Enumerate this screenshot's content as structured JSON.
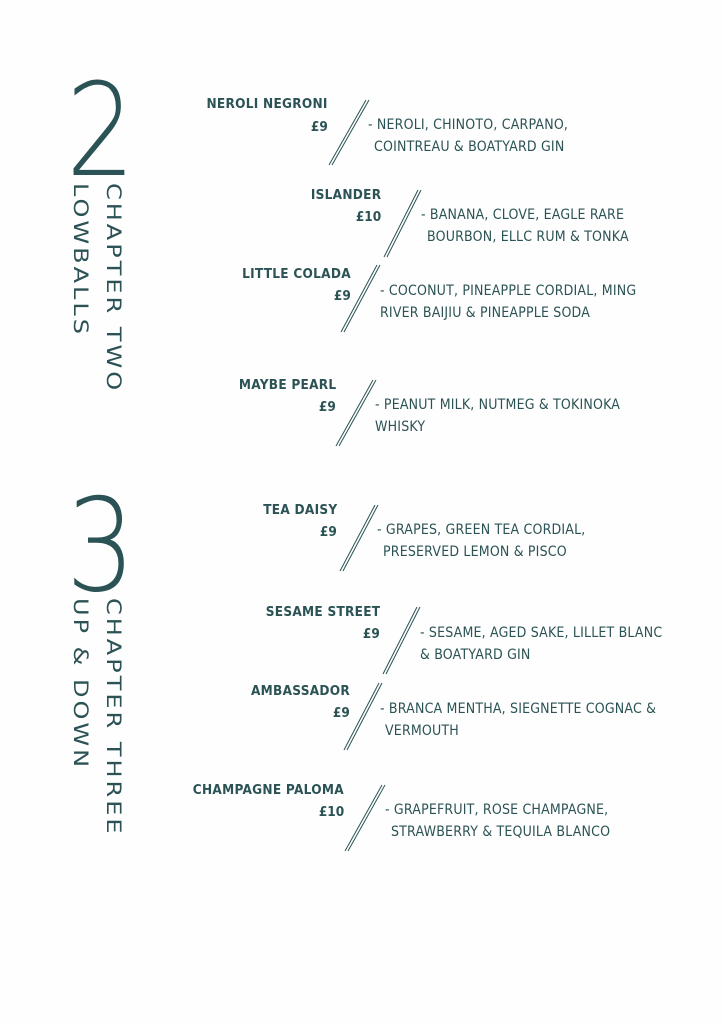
{
  "color": "#2b5254",
  "chapters": [
    {
      "number": "2",
      "title": "CHAPTER TWO",
      "subtitle": "LOWBALLS"
    },
    {
      "number": "3",
      "title": "CHAPTER THREE",
      "subtitle": "UP & DOWN"
    }
  ],
  "items": [
    {
      "name": "NEROLI NEGRONI",
      "price": "£9",
      "desc1": "- NEROLI, CHINOTO, CARPANO,",
      "desc2": "COINTREAU & BOATYARD GIN"
    },
    {
      "name": "ISLANDER",
      "price": "£10",
      "desc1": "- BANANA, CLOVE, EAGLE RARE",
      "desc2": "BOURBON, ELLC RUM & TONKA"
    },
    {
      "name": "LITTLE COLADA",
      "price": "£9",
      "desc1": "- COCONUT, PINEAPPLE CORDIAL, MING",
      "desc2": "RIVER BAIJIU & PINEAPPLE SODA"
    },
    {
      "name": "MAYBE PEARL",
      "price": "£9",
      "desc1": "- PEANUT MILK, NUTMEG & TOKINOKA",
      "desc2": "WHISKY"
    },
    {
      "name": "TEA DAISY",
      "price": "£9",
      "desc1": "- GRAPES, GREEN TEA CORDIAL,",
      "desc2": "PRESERVED LEMON & PISCO"
    },
    {
      "name": "SESAME STREET",
      "price": "£9",
      "desc1": "- SESAME, AGED SAKE, LILLET BLANC",
      "desc2": "& BOATYARD GIN"
    },
    {
      "name": "AMBASSADOR",
      "price": "£9",
      "desc1": "- BRANCA MENTHA, SIEGNETTE COGNAC &",
      "desc2": "VERMOUTH"
    },
    {
      "name": "CHAMPAGNE PALOMA",
      "price": "£10",
      "desc1": "- GRAPEFRUIT, ROSE CHAMPAGNE,",
      "desc2": "STRAWBERRY & TEQUILA BLANCO"
    }
  ]
}
